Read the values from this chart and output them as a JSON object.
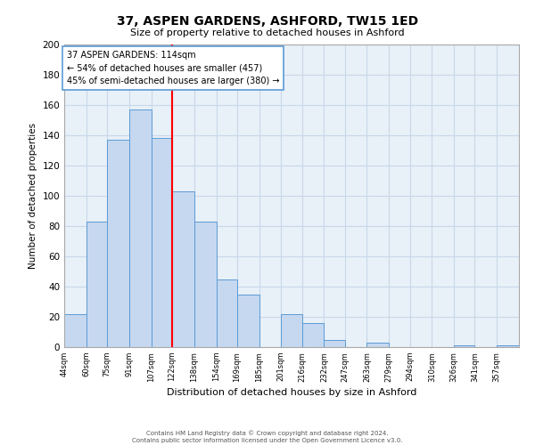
{
  "title": "37, ASPEN GARDENS, ASHFORD, TW15 1ED",
  "subtitle": "Size of property relative to detached houses in Ashford",
  "xlabel": "Distribution of detached houses by size in Ashford",
  "ylabel": "Number of detached properties",
  "footer_line1": "Contains HM Land Registry data © Crown copyright and database right 2024.",
  "footer_line2": "Contains public sector information licensed under the Open Government Licence v3.0.",
  "bin_labels": [
    "44sqm",
    "60sqm",
    "75sqm",
    "91sqm",
    "107sqm",
    "122sqm",
    "138sqm",
    "154sqm",
    "169sqm",
    "185sqm",
    "201sqm",
    "216sqm",
    "232sqm",
    "247sqm",
    "263sqm",
    "279sqm",
    "294sqm",
    "310sqm",
    "326sqm",
    "341sqm",
    "357sqm"
  ],
  "bar_heights": [
    22,
    83,
    137,
    157,
    138,
    103,
    83,
    45,
    35,
    0,
    22,
    16,
    5,
    0,
    3,
    0,
    0,
    0,
    1,
    0,
    1
  ],
  "bar_color": "#c5d8f0",
  "bar_edge_color": "#5b9bd5",
  "annotation_title": "37 ASPEN GARDENS: 114sqm",
  "annotation_line2": "← 54% of detached houses are smaller (457)",
  "annotation_line3": "45% of semi-detached houses are larger (380) →",
  "ylim": [
    0,
    200
  ],
  "yticks": [
    0,
    20,
    40,
    60,
    80,
    100,
    120,
    140,
    160,
    180,
    200
  ],
  "bin_edges_values": [
    44,
    60,
    75,
    91,
    107,
    122,
    138,
    154,
    169,
    185,
    201,
    216,
    232,
    247,
    263,
    279,
    294,
    310,
    326,
    341,
    357,
    373
  ],
  "grid_color": "#c8d8e8",
  "background_color": "#e8f0f8",
  "redline_x": 122
}
